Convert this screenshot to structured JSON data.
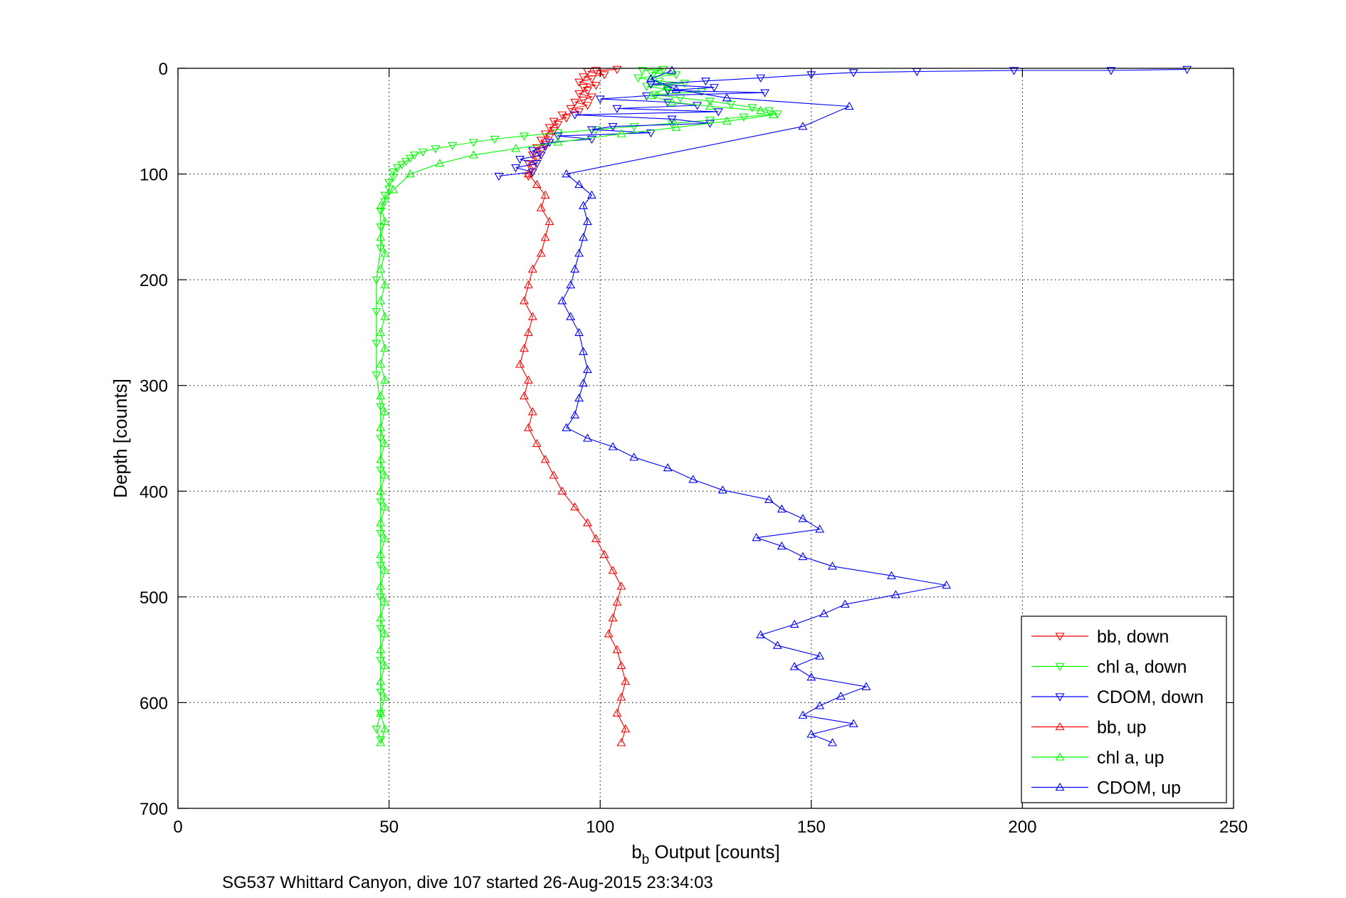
{
  "chart_data": {
    "type": "scatter",
    "xlabel_main": "b",
    "xlabel_sub": "b",
    "xlabel_rest": " Output [counts]",
    "ylabel": "Depth [counts]",
    "caption": "SG537 Whittard Canyon, dive 107 started 26-Aug-2015 23:34:03",
    "xlim": [
      0,
      250
    ],
    "ylim": [
      0,
      700
    ],
    "y_reversed": true,
    "grid": true,
    "legend_position": "bottom-right",
    "xticks": [
      "0",
      "50",
      "100",
      "150",
      "200",
      "250"
    ],
    "yticks": [
      "0",
      "100",
      "200",
      "300",
      "400",
      "500",
      "600",
      "700"
    ],
    "colors": {
      "red": "#ff0000",
      "green": "#00ff00",
      "blue": "#0000ff"
    },
    "series": [
      {
        "name": "bb, down",
        "color": "#ff0000",
        "marker": "triangle-down",
        "line": true,
        "points": [
          [
            99,
            2
          ],
          [
            104,
            1
          ],
          [
            97,
            3
          ],
          [
            101,
            6
          ],
          [
            96,
            8
          ],
          [
            98,
            10
          ],
          [
            95,
            13
          ],
          [
            99,
            16
          ],
          [
            96,
            18
          ],
          [
            97,
            21
          ],
          [
            95,
            24
          ],
          [
            98,
            27
          ],
          [
            96,
            30
          ],
          [
            94,
            32
          ],
          [
            97,
            35
          ],
          [
            93,
            38
          ],
          [
            95,
            41
          ],
          [
            91,
            44
          ],
          [
            92,
            47
          ],
          [
            89,
            50
          ],
          [
            90,
            53
          ],
          [
            88,
            56
          ],
          [
            89,
            59
          ],
          [
            87,
            62
          ],
          [
            88,
            65
          ],
          [
            86,
            68
          ],
          [
            87,
            72
          ],
          [
            85,
            75
          ],
          [
            86,
            78
          ],
          [
            84,
            82
          ],
          [
            85,
            86
          ],
          [
            83,
            90
          ],
          [
            84,
            94
          ],
          [
            84,
            98
          ],
          [
            83,
            102
          ]
        ]
      },
      {
        "name": "chl a, down",
        "color": "#00ff00",
        "marker": "triangle-down",
        "line": true,
        "points": [
          [
            110,
            2
          ],
          [
            115,
            1
          ],
          [
            112,
            4
          ],
          [
            118,
            6
          ],
          [
            109,
            9
          ],
          [
            114,
            12
          ],
          [
            120,
            14
          ],
          [
            111,
            17
          ],
          [
            116,
            20
          ],
          [
            124,
            22
          ],
          [
            113,
            25
          ],
          [
            119,
            28
          ],
          [
            126,
            31
          ],
          [
            131,
            34
          ],
          [
            136,
            37
          ],
          [
            140,
            40
          ],
          [
            142,
            43
          ],
          [
            134,
            46
          ],
          [
            126,
            49
          ],
          [
            117,
            52
          ],
          [
            108,
            55
          ],
          [
            99,
            58
          ],
          [
            90,
            61
          ],
          [
            82,
            64
          ],
          [
            75,
            67
          ],
          [
            70,
            70
          ],
          [
            65,
            73
          ],
          [
            61,
            76
          ],
          [
            58,
            79
          ],
          [
            56,
            82
          ],
          [
            55,
            85
          ],
          [
            54,
            88
          ],
          [
            53,
            91
          ],
          [
            52,
            94
          ],
          [
            51,
            98
          ],
          [
            51,
            103
          ],
          [
            50,
            108
          ],
          [
            50,
            114
          ],
          [
            49,
            120
          ],
          [
            49,
            126
          ],
          [
            48,
            135
          ],
          [
            48,
            150
          ],
          [
            48,
            170
          ],
          [
            47,
            200
          ],
          [
            47,
            230
          ],
          [
            47,
            260
          ],
          [
            47,
            290
          ],
          [
            48,
            320
          ],
          [
            48,
            350
          ],
          [
            48,
            380
          ],
          [
            48,
            410
          ],
          [
            48,
            440
          ],
          [
            48,
            470
          ],
          [
            48,
            500
          ],
          [
            48,
            530
          ],
          [
            48,
            560
          ],
          [
            48,
            590
          ],
          [
            48,
            610
          ],
          [
            47,
            625
          ],
          [
            48,
            635
          ]
        ]
      },
      {
        "name": "CDOM, down",
        "color": "#0000ff",
        "marker": "triangle-down",
        "line": true,
        "points": [
          [
            239,
            1
          ],
          [
            221,
            2
          ],
          [
            198,
            2
          ],
          [
            175,
            3
          ],
          [
            160,
            4
          ],
          [
            150,
            6
          ],
          [
            138,
            9
          ],
          [
            125,
            12
          ],
          [
            112,
            15
          ],
          [
            127,
            18
          ],
          [
            116,
            21
          ],
          [
            139,
            23
          ],
          [
            111,
            26
          ],
          [
            100,
            29
          ],
          [
            116,
            32
          ],
          [
            123,
            35
          ],
          [
            104,
            38
          ],
          [
            128,
            41
          ],
          [
            94,
            44
          ],
          [
            117,
            48
          ],
          [
            126,
            52
          ],
          [
            103,
            55
          ],
          [
            98,
            58
          ],
          [
            112,
            61
          ],
          [
            90,
            64
          ],
          [
            98,
            67
          ],
          [
            88,
            70
          ],
          [
            87,
            74
          ],
          [
            84,
            78
          ],
          [
            86,
            82
          ],
          [
            81,
            86
          ],
          [
            85,
            90
          ],
          [
            80,
            94
          ],
          [
            84,
            98
          ],
          [
            76,
            102
          ]
        ]
      },
      {
        "name": "bb, up",
        "color": "#ff0000",
        "marker": "triangle-up",
        "line": true,
        "points": [
          [
            83,
            100
          ],
          [
            85,
            110
          ],
          [
            87,
            120
          ],
          [
            86,
            132
          ],
          [
            88,
            145
          ],
          [
            87,
            160
          ],
          [
            86,
            175
          ],
          [
            84,
            190
          ],
          [
            83,
            205
          ],
          [
            82,
            220
          ],
          [
            84,
            235
          ],
          [
            83,
            250
          ],
          [
            82,
            265
          ],
          [
            81,
            280
          ],
          [
            83,
            295
          ],
          [
            82,
            310
          ],
          [
            84,
            325
          ],
          [
            83,
            340
          ],
          [
            85,
            355
          ],
          [
            87,
            370
          ],
          [
            89,
            385
          ],
          [
            91,
            400
          ],
          [
            94,
            415
          ],
          [
            97,
            430
          ],
          [
            99,
            445
          ],
          [
            101,
            460
          ],
          [
            103,
            475
          ],
          [
            105,
            490
          ],
          [
            104,
            505
          ],
          [
            103,
            520
          ],
          [
            102,
            535
          ],
          [
            104,
            550
          ],
          [
            105,
            565
          ],
          [
            106,
            580
          ],
          [
            105,
            595
          ],
          [
            104,
            610
          ],
          [
            106,
            625
          ],
          [
            105,
            638
          ]
        ]
      },
      {
        "name": "chl a, up",
        "color": "#00ff00",
        "marker": "triangle-up",
        "line": true,
        "points": [
          [
            48,
            638
          ],
          [
            49,
            625
          ],
          [
            48,
            610
          ],
          [
            49,
            595
          ],
          [
            48,
            580
          ],
          [
            49,
            565
          ],
          [
            48,
            550
          ],
          [
            49,
            535
          ],
          [
            48,
            520
          ],
          [
            49,
            505
          ],
          [
            48,
            490
          ],
          [
            49,
            475
          ],
          [
            48,
            460
          ],
          [
            49,
            445
          ],
          [
            48,
            430
          ],
          [
            49,
            415
          ],
          [
            48,
            400
          ],
          [
            49,
            385
          ],
          [
            48,
            370
          ],
          [
            49,
            355
          ],
          [
            48,
            340
          ],
          [
            49,
            325
          ],
          [
            48,
            310
          ],
          [
            49,
            295
          ],
          [
            48,
            280
          ],
          [
            49,
            265
          ],
          [
            48,
            250
          ],
          [
            49,
            235
          ],
          [
            48,
            220
          ],
          [
            49,
            205
          ],
          [
            48,
            190
          ],
          [
            49,
            175
          ],
          [
            48,
            160
          ],
          [
            49,
            145
          ],
          [
            48,
            130
          ],
          [
            51,
            115
          ],
          [
            55,
            100
          ],
          [
            62,
            90
          ],
          [
            70,
            82
          ],
          [
            80,
            76
          ],
          [
            90,
            70
          ],
          [
            105,
            62
          ],
          [
            118,
            56
          ],
          [
            130,
            50
          ],
          [
            141,
            44
          ],
          [
            138,
            40
          ],
          [
            126,
            36
          ],
          [
            117,
            32
          ],
          [
            112,
            26
          ],
          [
            116,
            18
          ],
          [
            112,
            10
          ],
          [
            114,
            2
          ]
        ]
      },
      {
        "name": "CDOM, up",
        "color": "#0000ff",
        "marker": "triangle-up",
        "line": true,
        "points": [
          [
            155,
            638
          ],
          [
            150,
            630
          ],
          [
            160,
            620
          ],
          [
            148,
            612
          ],
          [
            152,
            603
          ],
          [
            157,
            594
          ],
          [
            163,
            585
          ],
          [
            150,
            576
          ],
          [
            146,
            566
          ],
          [
            152,
            556
          ],
          [
            142,
            546
          ],
          [
            138,
            536
          ],
          [
            146,
            526
          ],
          [
            153,
            516
          ],
          [
            158,
            507
          ],
          [
            170,
            498
          ],
          [
            182,
            489
          ],
          [
            169,
            480
          ],
          [
            155,
            471
          ],
          [
            148,
            462
          ],
          [
            143,
            452
          ],
          [
            137,
            444
          ],
          [
            152,
            436
          ],
          [
            148,
            426
          ],
          [
            143,
            417
          ],
          [
            140,
            408
          ],
          [
            129,
            399
          ],
          [
            122,
            389
          ],
          [
            116,
            378
          ],
          [
            108,
            368
          ],
          [
            103,
            358
          ],
          [
            97,
            350
          ],
          [
            92,
            340
          ],
          [
            94,
            328
          ],
          [
            95,
            312
          ],
          [
            96,
            298
          ],
          [
            97,
            285
          ],
          [
            96,
            268
          ],
          [
            95,
            250
          ],
          [
            93,
            235
          ],
          [
            91,
            220
          ],
          [
            93,
            205
          ],
          [
            94,
            190
          ],
          [
            95,
            175
          ],
          [
            96,
            160
          ],
          [
            97,
            145
          ],
          [
            96,
            130
          ],
          [
            98,
            120
          ],
          [
            95,
            110
          ],
          [
            92,
            100
          ],
          [
            148,
            55
          ],
          [
            159,
            36
          ],
          [
            130,
            28
          ],
          [
            118,
            20
          ],
          [
            112,
            10
          ],
          [
            117,
            2
          ]
        ]
      }
    ]
  }
}
